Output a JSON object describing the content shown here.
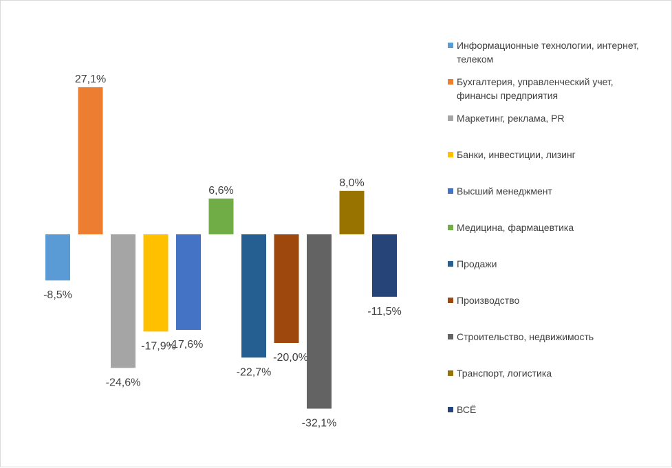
{
  "chart_data": {
    "type": "bar",
    "categories": [
      "Информационные технологии, интернет, телеком",
      "Бухгалтерия, управленческий учет, финансы предприятия",
      "Маркетинг, реклама, PR",
      "Банки, инвестиции, лизинг",
      "Высший менеджмент",
      "Медицина, фармацевтика",
      "Продажи",
      "Производство",
      "Строительство, недвижимость",
      "Транспорт, логистика",
      "ВСЁ"
    ],
    "values": [
      -8.5,
      27.1,
      -24.6,
      -17.9,
      -17.6,
      6.6,
      -22.7,
      -20.0,
      -32.1,
      8.0,
      -11.5
    ],
    "labels": [
      "-8,5%",
      "27,1%",
      "-24,6%",
      "-17,9%",
      "-17,6%",
      "6,6%",
      "-22,7%",
      "-20,0%",
      "-32,1%",
      "8,0%",
      "-11,5%"
    ],
    "colors": [
      "#5b9bd5",
      "#ed7d31",
      "#a5a5a5",
      "#ffc000",
      "#4472c4",
      "#70ad47",
      "#255e91",
      "#9e480e",
      "#636363",
      "#997300",
      "#264478"
    ],
    "legend_labels": [
      [
        "Информационные технологии, интернет,",
        "телеком"
      ],
      [
        "Бухгалтерия, управленческий учет,",
        "финансы предприятия"
      ],
      [
        "Маркетинг, реклама, PR"
      ],
      [
        "Банки, инвестиции, лизинг"
      ],
      [
        "Высший менеджмент"
      ],
      [
        "Медицина, фармацевтика"
      ],
      [
        "Продажи"
      ],
      [
        "Производство"
      ],
      [
        "Строительство, недвижимость"
      ],
      [
        "Транспорт, логистика"
      ],
      [
        "ВСЁ"
      ]
    ],
    "ylim": [
      -32.1,
      27.1
    ],
    "grid": false,
    "legend_position": "right",
    "title": "",
    "xlabel": "",
    "ylabel": ""
  }
}
